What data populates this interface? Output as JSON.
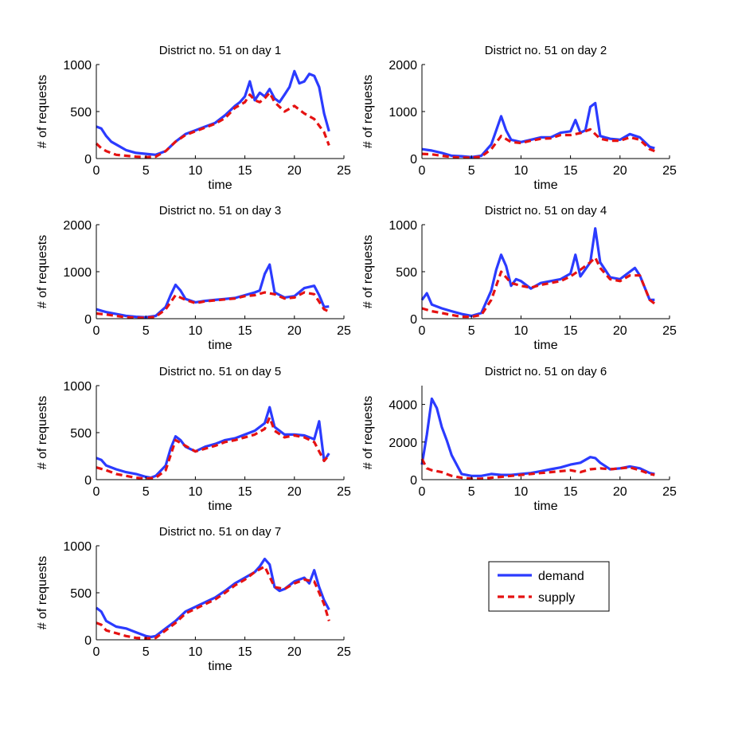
{
  "figure": {
    "xlabel": "time",
    "ylabel": "# of requests",
    "legend": {
      "placement": "lower-right",
      "entries": [
        {
          "name": "demand",
          "color": "#2b3bff",
          "style": "solid"
        },
        {
          "name": "supply",
          "color": "#e51212",
          "style": "dashed"
        }
      ]
    }
  },
  "chart_data": [
    {
      "type": "line",
      "title": "District no. 51 on day 1",
      "xlabel": "time",
      "ylabel": "# of requests",
      "xlim": [
        0,
        25
      ],
      "ylim": [
        0,
        1000
      ],
      "xticks": [
        0,
        5,
        10,
        15,
        20,
        25
      ],
      "yticks": [
        0,
        500,
        1000
      ],
      "series": [
        {
          "name": "demand",
          "color": "#2b3bff",
          "style": "solid",
          "x": [
            0,
            0.5,
            1,
            1.5,
            2,
            3,
            4,
            5,
            6,
            7,
            8,
            9,
            10,
            11,
            12,
            13,
            14,
            14.5,
            15,
            15.5,
            16,
            16.5,
            17,
            17.5,
            18,
            18.5,
            19,
            19.5,
            20,
            20.5,
            21,
            21.5,
            22,
            22.5,
            23,
            23.5
          ],
          "y": [
            340,
            320,
            240,
            180,
            150,
            90,
            60,
            50,
            40,
            80,
            180,
            260,
            300,
            340,
            380,
            460,
            560,
            600,
            660,
            820,
            620,
            700,
            660,
            740,
            640,
            600,
            680,
            760,
            930,
            800,
            820,
            900,
            880,
            760,
            480,
            290
          ]
        },
        {
          "name": "supply",
          "color": "#e51212",
          "style": "dashed",
          "x": [
            0,
            0.5,
            1,
            2,
            3,
            4,
            5,
            6,
            7,
            8,
            9,
            10,
            11,
            12,
            13,
            14,
            15,
            15.5,
            16,
            16.5,
            17,
            17.5,
            18,
            19,
            20,
            21,
            22,
            23,
            23.5
          ],
          "y": [
            160,
            110,
            80,
            40,
            30,
            20,
            15,
            20,
            80,
            180,
            250,
            290,
            330,
            370,
            430,
            540,
            600,
            680,
            620,
            600,
            640,
            700,
            600,
            500,
            560,
            480,
            420,
            280,
            140
          ]
        }
      ]
    },
    {
      "type": "line",
      "title": "District no. 51 on day 2",
      "xlabel": "time",
      "ylabel": "# of requests",
      "xlim": [
        0,
        25
      ],
      "ylim": [
        0,
        2000
      ],
      "xticks": [
        0,
        5,
        10,
        15,
        20,
        25
      ],
      "yticks": [
        0,
        1000,
        2000
      ],
      "series": [
        {
          "name": "demand",
          "color": "#2b3bff",
          "style": "solid",
          "x": [
            0,
            1,
            2,
            3,
            4,
            5,
            6,
            7,
            7.5,
            8,
            8.5,
            9,
            10,
            11,
            12,
            13,
            14,
            15,
            15.5,
            16,
            16.5,
            17,
            17.5,
            18,
            19,
            20,
            21,
            22,
            23,
            23.5
          ],
          "y": [
            200,
            170,
            120,
            60,
            50,
            30,
            60,
            300,
            600,
            900,
            600,
            400,
            350,
            400,
            450,
            450,
            550,
            580,
            820,
            550,
            600,
            1100,
            1180,
            480,
            420,
            400,
            520,
            450,
            250,
            220
          ]
        },
        {
          "name": "supply",
          "color": "#e51212",
          "style": "dashed",
          "x": [
            0,
            1,
            2,
            3,
            4,
            5,
            6,
            7,
            8,
            9,
            10,
            11,
            12,
            13,
            14,
            15,
            16,
            17,
            18,
            19,
            20,
            21,
            22,
            23,
            23.5
          ],
          "y": [
            100,
            90,
            60,
            30,
            20,
            20,
            40,
            200,
            480,
            350,
            330,
            380,
            420,
            430,
            500,
            500,
            540,
            620,
            420,
            380,
            380,
            450,
            400,
            200,
            160
          ]
        }
      ]
    },
    {
      "type": "line",
      "title": "District no. 51 on day 3",
      "xlabel": "time",
      "ylabel": "# of requests",
      "xlim": [
        0,
        25
      ],
      "ylim": [
        0,
        2000
      ],
      "xticks": [
        0,
        5,
        10,
        15,
        20,
        25
      ],
      "yticks": [
        0,
        1000,
        2000
      ],
      "series": [
        {
          "name": "demand",
          "color": "#2b3bff",
          "style": "solid",
          "x": [
            0,
            1,
            2,
            3,
            4,
            5,
            6,
            7,
            7.5,
            8,
            8.5,
            9,
            10,
            11,
            12,
            13,
            14,
            15,
            16,
            16.5,
            17,
            17.5,
            18,
            19,
            20,
            21,
            22,
            22.5,
            23,
            23.5
          ],
          "y": [
            200,
            140,
            100,
            60,
            40,
            30,
            60,
            250,
            500,
            720,
            600,
            420,
            350,
            380,
            400,
            420,
            440,
            500,
            560,
            600,
            950,
            1150,
            560,
            450,
            480,
            650,
            700,
            500,
            250,
            260
          ]
        },
        {
          "name": "supply",
          "color": "#e51212",
          "style": "dashed",
          "x": [
            0,
            1,
            2,
            3,
            4,
            5,
            6,
            7,
            8,
            9,
            10,
            11,
            12,
            13,
            14,
            15,
            16,
            17,
            18,
            19,
            20,
            21,
            22,
            23,
            23.5
          ],
          "y": [
            110,
            90,
            60,
            30,
            20,
            20,
            40,
            200,
            500,
            400,
            330,
            370,
            390,
            410,
            430,
            480,
            500,
            560,
            520,
            430,
            450,
            560,
            520,
            200,
            150
          ]
        }
      ]
    },
    {
      "type": "line",
      "title": "District no. 51 on day 4",
      "xlabel": "time",
      "ylabel": "# of requests",
      "xlim": [
        0,
        25
      ],
      "ylim": [
        0,
        1000
      ],
      "xticks": [
        0,
        5,
        10,
        15,
        20,
        25
      ],
      "yticks": [
        0,
        500,
        1000
      ],
      "series": [
        {
          "name": "demand",
          "color": "#2b3bff",
          "style": "solid",
          "x": [
            0,
            0.5,
            1,
            2,
            3,
            4,
            5,
            6,
            7,
            7.5,
            8,
            8.5,
            9,
            9.5,
            10,
            11,
            12,
            13,
            14,
            15,
            15.5,
            16,
            17,
            17.5,
            18,
            19,
            20,
            21,
            21.5,
            22,
            23,
            23.5
          ],
          "y": [
            200,
            270,
            150,
            110,
            80,
            50,
            30,
            60,
            300,
            520,
            680,
            560,
            350,
            420,
            400,
            320,
            380,
            400,
            420,
            480,
            680,
            450,
            600,
            960,
            600,
            440,
            420,
            500,
            540,
            460,
            200,
            200
          ]
        },
        {
          "name": "supply",
          "color": "#e51212",
          "style": "dashed",
          "x": [
            0,
            1,
            2,
            3,
            4,
            5,
            6,
            7,
            8,
            9,
            10,
            11,
            12,
            13,
            14,
            15,
            16,
            17,
            17.5,
            18,
            19,
            20,
            21,
            22,
            23,
            23.5
          ],
          "y": [
            110,
            80,
            60,
            40,
            20,
            20,
            40,
            200,
            500,
            380,
            350,
            330,
            360,
            380,
            400,
            450,
            520,
            600,
            650,
            540,
            420,
            400,
            460,
            460,
            200,
            160
          ]
        }
      ]
    },
    {
      "type": "line",
      "title": "District no. 51 on day 5",
      "xlabel": "time",
      "ylabel": "# of requests",
      "xlim": [
        0,
        25
      ],
      "ylim": [
        0,
        1000
      ],
      "xticks": [
        0,
        5,
        10,
        15,
        20,
        25
      ],
      "yticks": [
        0,
        500,
        1000
      ],
      "series": [
        {
          "name": "demand",
          "color": "#2b3bff",
          "style": "solid",
          "x": [
            0,
            0.5,
            1,
            2,
            3,
            4,
            5,
            5.5,
            6,
            7,
            7.5,
            8,
            8.5,
            9,
            10,
            11,
            12,
            13,
            14,
            15,
            16,
            17,
            17.5,
            18,
            19,
            20,
            21,
            22,
            22.5,
            23,
            23.5
          ],
          "y": [
            230,
            210,
            150,
            110,
            80,
            60,
            30,
            20,
            40,
            150,
            330,
            460,
            420,
            350,
            300,
            350,
            380,
            420,
            440,
            480,
            520,
            600,
            770,
            560,
            480,
            480,
            470,
            430,
            620,
            200,
            280
          ]
        },
        {
          "name": "supply",
          "color": "#e51212",
          "style": "dashed",
          "x": [
            0,
            1,
            2,
            3,
            4,
            5,
            6,
            7,
            8,
            9,
            10,
            11,
            12,
            13,
            14,
            15,
            16,
            17,
            17.5,
            18,
            19,
            20,
            21,
            22,
            23,
            23.5
          ],
          "y": [
            130,
            100,
            60,
            40,
            20,
            10,
            20,
            100,
            420,
            360,
            300,
            330,
            360,
            400,
            420,
            450,
            480,
            540,
            660,
            520,
            450,
            470,
            450,
            400,
            200,
            260
          ]
        }
      ]
    },
    {
      "type": "line",
      "title": "District no. 51 on day 6",
      "xlabel": "time",
      "ylabel": "# of requests",
      "xlim": [
        0,
        25
      ],
      "ylim": [
        0,
        5000
      ],
      "xticks": [
        0,
        5,
        10,
        15,
        20,
        25
      ],
      "yticks": [
        0,
        2000,
        4000
      ],
      "series": [
        {
          "name": "demand",
          "color": "#2b3bff",
          "style": "solid",
          "x": [
            0,
            0.5,
            1,
            1.5,
            2,
            2.5,
            3,
            4,
            5,
            6,
            7,
            8,
            9,
            10,
            11,
            12,
            13,
            14,
            15,
            16,
            17,
            17.5,
            18,
            19,
            20,
            21,
            22,
            23,
            23.5
          ],
          "y": [
            800,
            2400,
            4300,
            3800,
            2800,
            2100,
            1300,
            300,
            200,
            200,
            300,
            250,
            250,
            300,
            350,
            450,
            550,
            650,
            800,
            900,
            1200,
            1150,
            900,
            550,
            600,
            700,
            600,
            350,
            300
          ]
        },
        {
          "name": "supply",
          "color": "#e51212",
          "style": "dashed",
          "x": [
            0,
            0.5,
            1,
            2,
            3,
            4,
            5,
            6,
            7,
            8,
            9,
            10,
            11,
            12,
            13,
            14,
            15,
            16,
            17,
            18,
            19,
            20,
            21,
            22,
            23,
            23.5
          ],
          "y": [
            1100,
            600,
            500,
            400,
            200,
            100,
            50,
            50,
            100,
            150,
            200,
            250,
            300,
            350,
            400,
            450,
            500,
            400,
            550,
            600,
            550,
            600,
            650,
            500,
            300,
            250
          ]
        }
      ]
    },
    {
      "type": "line",
      "title": "District no. 51 on day 7",
      "xlabel": "time",
      "ylabel": "# of requests",
      "xlim": [
        0,
        25
      ],
      "ylim": [
        0,
        1000
      ],
      "xticks": [
        0,
        5,
        10,
        15,
        20,
        25
      ],
      "yticks": [
        0,
        500,
        1000
      ],
      "series": [
        {
          "name": "demand",
          "color": "#2b3bff",
          "style": "solid",
          "x": [
            0,
            0.5,
            1,
            2,
            3,
            4,
            5,
            5.5,
            6,
            7,
            8,
            9,
            10,
            11,
            12,
            13,
            14,
            15,
            16,
            16.5,
            17,
            17.5,
            18,
            18.5,
            19,
            20,
            21,
            21.5,
            22,
            22.5,
            23,
            23.5
          ],
          "y": [
            340,
            300,
            200,
            140,
            120,
            80,
            40,
            30,
            40,
            120,
            200,
            300,
            350,
            400,
            450,
            520,
            600,
            660,
            720,
            780,
            860,
            800,
            560,
            520,
            540,
            620,
            660,
            600,
            740,
            560,
            420,
            320
          ]
        },
        {
          "name": "supply",
          "color": "#e51212",
          "style": "dashed",
          "x": [
            0,
            0.5,
            1,
            2,
            3,
            4,
            5,
            6,
            7,
            8,
            9,
            10,
            11,
            12,
            13,
            14,
            15,
            16,
            17,
            18,
            19,
            20,
            21,
            22,
            23,
            23.5
          ],
          "y": [
            180,
            160,
            100,
            70,
            40,
            20,
            15,
            20,
            100,
            180,
            280,
            330,
            380,
            430,
            500,
            580,
            640,
            720,
            780,
            560,
            540,
            600,
            640,
            620,
            380,
            200
          ]
        }
      ]
    }
  ]
}
